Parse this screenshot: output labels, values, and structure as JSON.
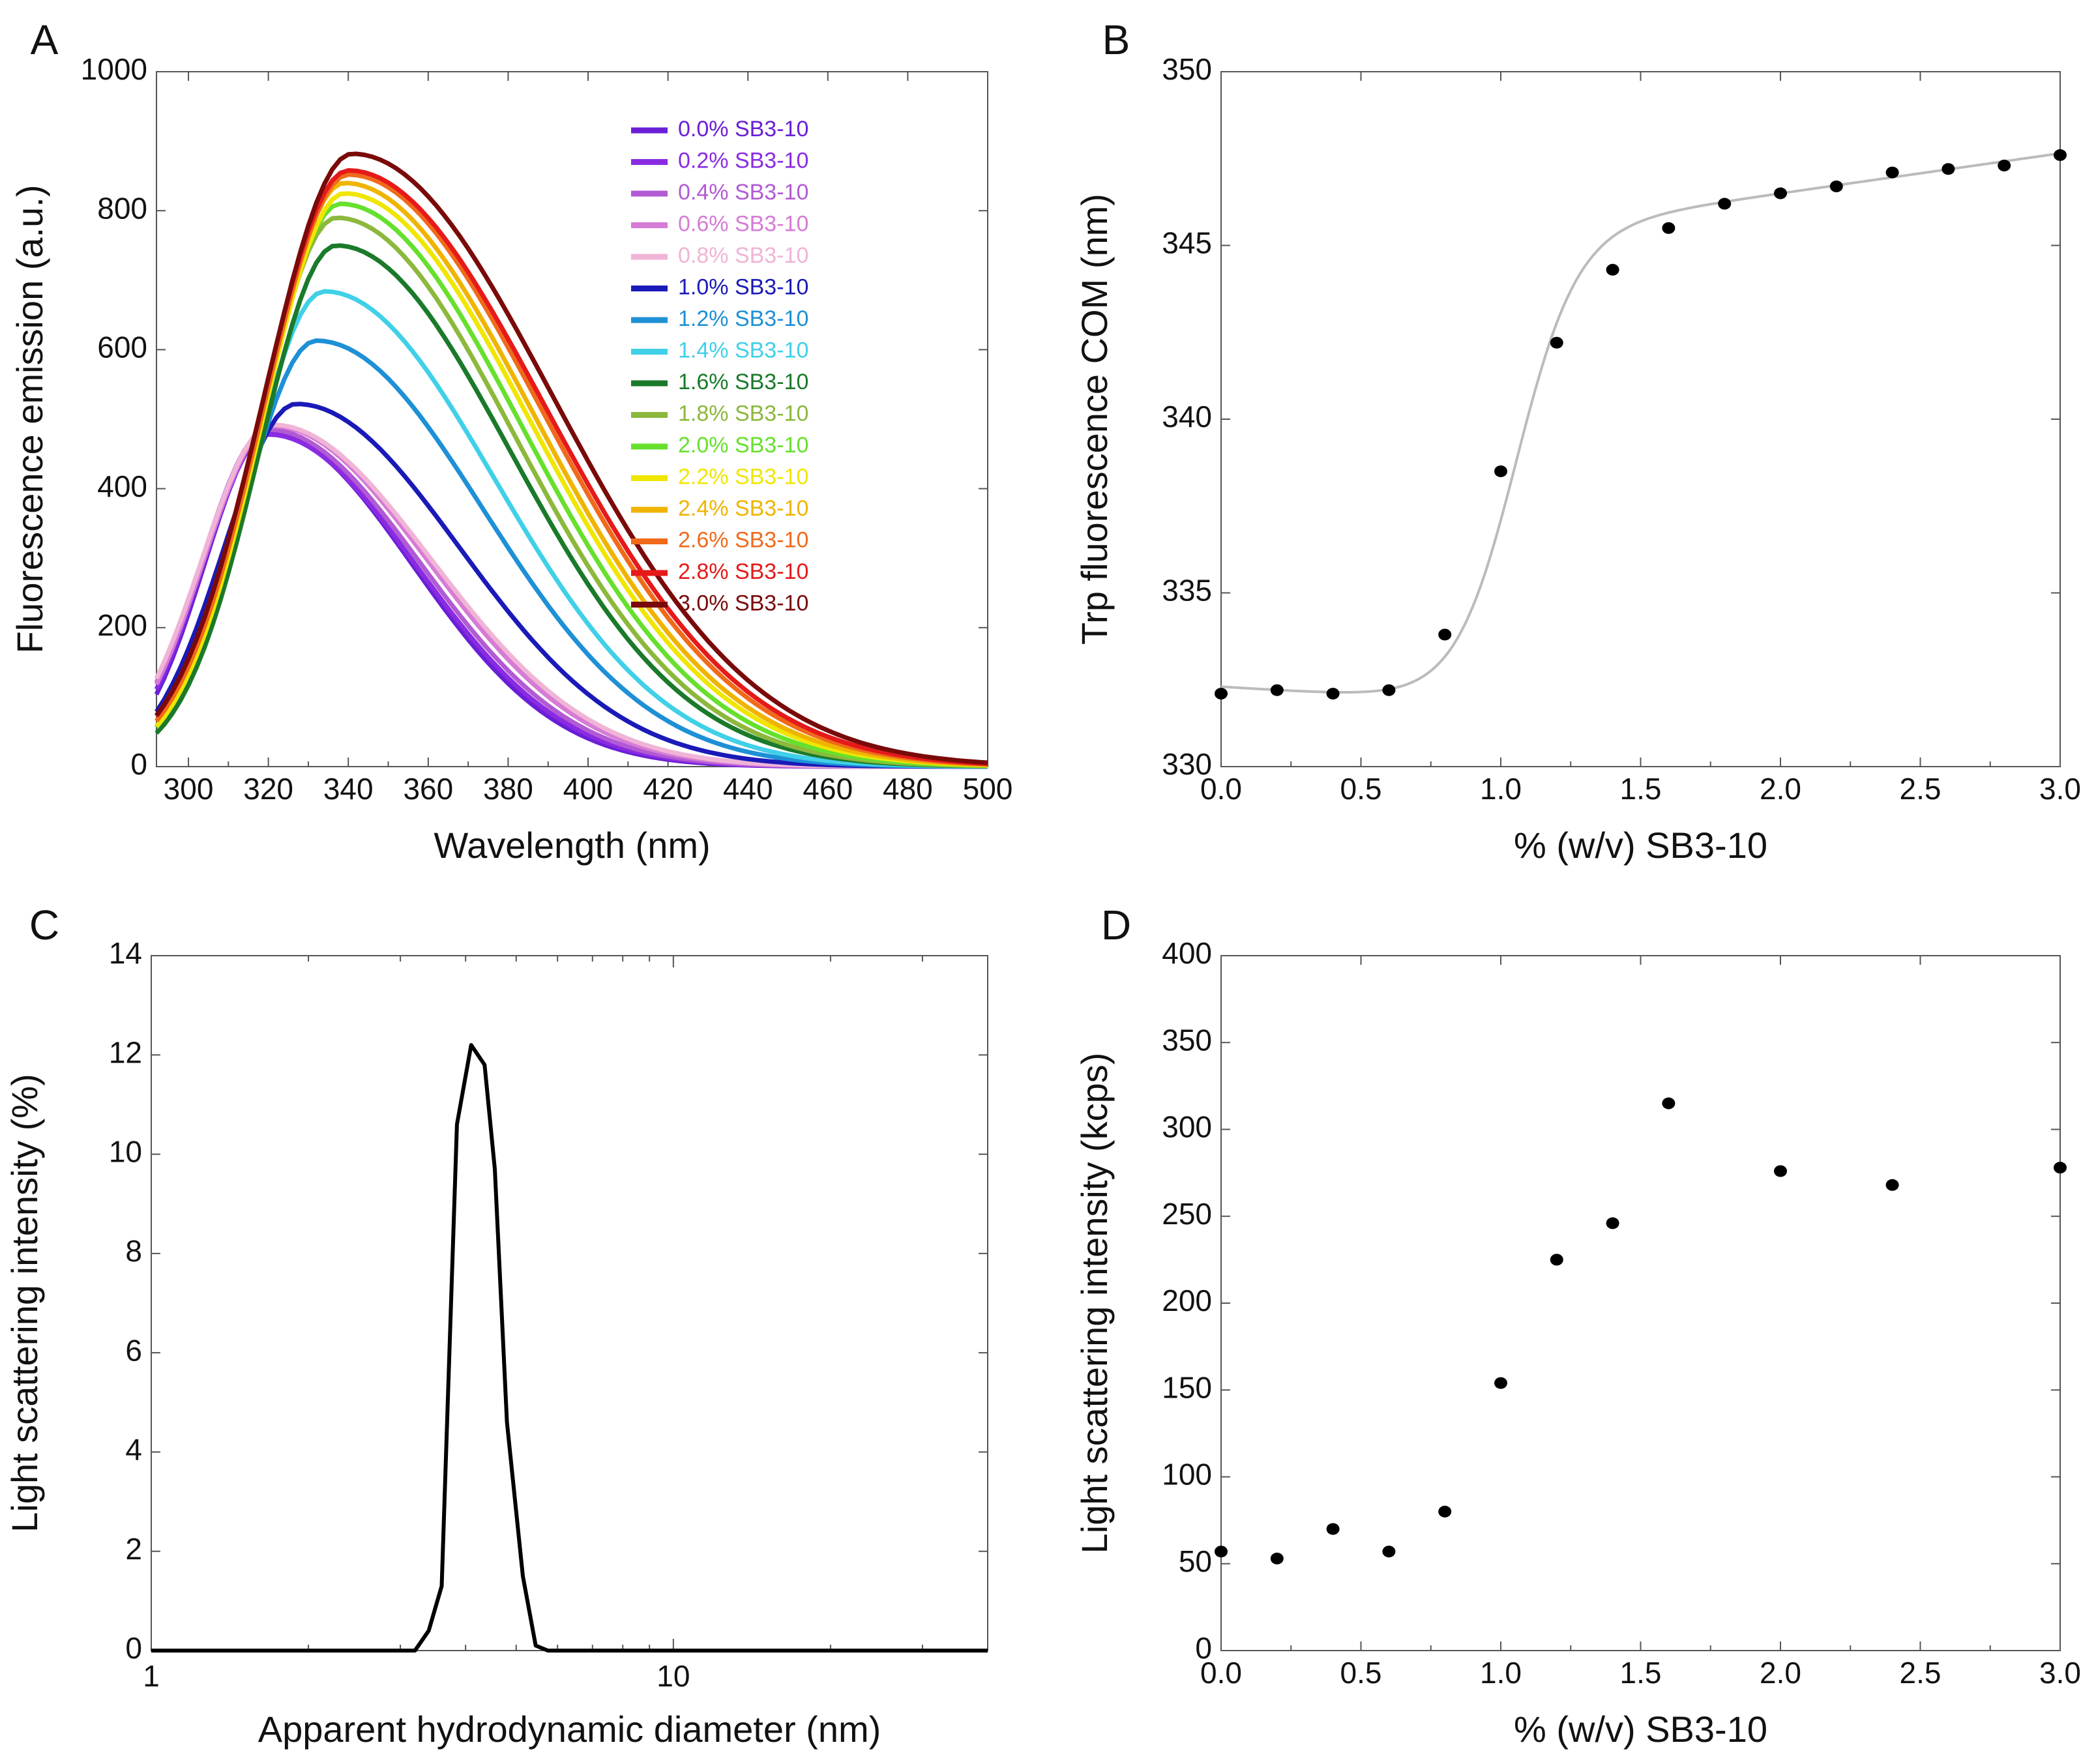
{
  "panels": {
    "A": {
      "letter": "A",
      "chart_data": {
        "type": "line",
        "xlabel": "Wavelength (nm)",
        "ylabel": "Fluorescence emission (a.u.)",
        "xlim": [
          292,
          500
        ],
        "ylim": [
          0,
          1000
        ],
        "xticks": [
          300,
          320,
          340,
          360,
          380,
          400,
          420,
          440,
          460,
          480,
          500
        ],
        "yticks": [
          0,
          200,
          400,
          600,
          800,
          1000
        ],
        "legend_position": "top-right",
        "series": [
          {
            "name": "0.0% SB3-10",
            "color": "#6a1fd6",
            "peak_x": 320,
            "peak_y": 480
          },
          {
            "name": "0.2% SB3-10",
            "color": "#8a2be2",
            "peak_x": 320,
            "peak_y": 478
          },
          {
            "name": "0.4% SB3-10",
            "color": "#b25ad4",
            "peak_x": 320,
            "peak_y": 485
          },
          {
            "name": "0.6% SB3-10",
            "color": "#d67bd6",
            "peak_x": 321,
            "peak_y": 490
          },
          {
            "name": "0.8% SB3-10",
            "color": "#f0b4d6",
            "peak_x": 321,
            "peak_y": 492
          },
          {
            "name": "1.0% SB3-10",
            "color": "#1a1ab8",
            "peak_x": 327,
            "peak_y": 522
          },
          {
            "name": "1.2% SB3-10",
            "color": "#1e90d6",
            "peak_x": 332,
            "peak_y": 613
          },
          {
            "name": "1.4% SB3-10",
            "color": "#40d0e8",
            "peak_x": 334,
            "peak_y": 684
          },
          {
            "name": "1.6% SB3-10",
            "color": "#1a7a2a",
            "peak_x": 337,
            "peak_y": 750
          },
          {
            "name": "1.8% SB3-10",
            "color": "#8cb83c",
            "peak_x": 337,
            "peak_y": 790
          },
          {
            "name": "2.0% SB3-10",
            "color": "#66e02c",
            "peak_x": 338,
            "peak_y": 810
          },
          {
            "name": "2.2% SB3-10",
            "color": "#f0e600",
            "peak_x": 339,
            "peak_y": 825
          },
          {
            "name": "2.4% SB3-10",
            "color": "#f0b400",
            "peak_x": 339,
            "peak_y": 840
          },
          {
            "name": "2.6% SB3-10",
            "color": "#f06a1a",
            "peak_x": 340,
            "peak_y": 852
          },
          {
            "name": "2.8% SB3-10",
            "color": "#e61a1a",
            "peak_x": 340,
            "peak_y": 858
          },
          {
            "name": "3.0% SB3-10",
            "color": "#7a0a0a",
            "peak_x": 341,
            "peak_y": 882
          }
        ]
      }
    },
    "B": {
      "letter": "B",
      "chart_data": {
        "type": "scatter",
        "xlabel": "% (w/v) SB3-10",
        "ylabel": "Trp fluorescence COM (nm)",
        "xlim": [
          0,
          3
        ],
        "ylim": [
          330,
          350
        ],
        "xticks": [
          "0.0",
          "0.5",
          "1.0",
          "1.5",
          "2.0",
          "2.5",
          "3.0"
        ],
        "yticks": [
          330,
          335,
          340,
          345,
          350
        ],
        "point_color": "#000000",
        "fit_color": "#bbbbbb",
        "x": [
          0.0,
          0.2,
          0.4,
          0.6,
          0.8,
          1.0,
          1.2,
          1.4,
          1.6,
          1.8,
          2.0,
          2.2,
          2.4,
          2.6,
          2.8,
          3.0
        ],
        "y": [
          332.1,
          332.2,
          332.1,
          332.2,
          333.8,
          338.5,
          342.2,
          344.3,
          345.5,
          346.2,
          346.5,
          346.7,
          347.1,
          347.2,
          347.3,
          347.6
        ]
      }
    },
    "C": {
      "letter": "C",
      "chart_data": {
        "type": "line",
        "xlabel": "Apparent hydrodynamic diameter (nm)",
        "ylabel": "Light scattering intensity (%)",
        "x_scale": "log",
        "xlim": [
          1,
          40
        ],
        "ylim": [
          0,
          14
        ],
        "xticks": [
          1,
          10
        ],
        "yticks": [
          0,
          2,
          4,
          6,
          8,
          10,
          12,
          14
        ],
        "line_color": "#000000",
        "x": [
          1,
          3.2,
          3.4,
          3.6,
          3.85,
          4.1,
          4.35,
          4.55,
          4.8,
          5.15,
          5.45,
          5.75,
          40
        ],
        "y": [
          0,
          0,
          0.4,
          1.3,
          10.6,
          12.2,
          11.8,
          9.7,
          4.6,
          1.5,
          0.1,
          0,
          0
        ]
      }
    },
    "D": {
      "letter": "D",
      "chart_data": {
        "type": "scatter",
        "xlabel": "% (w/v) SB3-10",
        "ylabel": "Light scattering intensity (kcps)",
        "xlim": [
          0,
          3
        ],
        "ylim": [
          0,
          400
        ],
        "xticks": [
          "0.0",
          "0.5",
          "1.0",
          "1.5",
          "2.0",
          "2.5",
          "3.0"
        ],
        "yticks": [
          0,
          50,
          100,
          150,
          200,
          250,
          300,
          350,
          400
        ],
        "point_color": "#000000",
        "x": [
          0.0,
          0.2,
          0.4,
          0.6,
          0.8,
          1.0,
          1.2,
          1.4,
          1.6,
          2.0,
          2.4,
          3.0
        ],
        "y": [
          57,
          53,
          70,
          57,
          80,
          154,
          225,
          246,
          315,
          276,
          268,
          278
        ]
      }
    }
  }
}
